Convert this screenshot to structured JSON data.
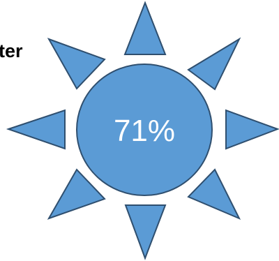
{
  "label_fragment": "ter",
  "percentage_text": "71%",
  "colors": {
    "fill": "#5b9bd5",
    "stroke": "#2f4f6f",
    "label_text": "#000000",
    "percent_text": "#ffffff"
  }
}
